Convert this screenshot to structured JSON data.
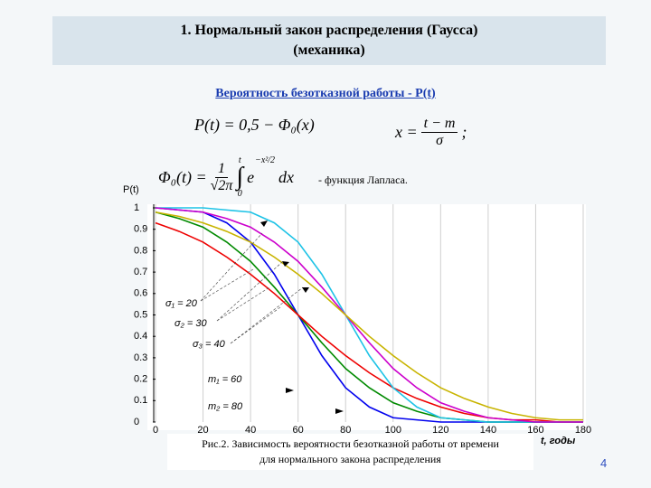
{
  "slide": {
    "title": [
      "1. Нормальный закон распределения (Гаусса)",
      "(механика)"
    ],
    "subtitle": "Вероятность безотказной работы  - P(t)",
    "formula_p": "P(t) = 0,5 − Φ₀(x)",
    "formula_x": {
      "lhs": "x =",
      "num": "t − m",
      "den": "σ",
      "end": ";"
    },
    "formula_laplace": {
      "lhs": "Φ₀(t) =",
      "num": "1",
      "den": "√2π",
      "integral": "∫",
      "upper": "t",
      "lower": "0",
      "base": "e",
      "exponent": "−x²/2",
      "tail": "dx"
    },
    "laplace_note": "- функция Лапласа.",
    "caption": [
      "Рис.2. Зависимость вероятности безотказной работы от времени",
      "для нормального закона распределения"
    ],
    "page_number": "4"
  },
  "chart_data": {
    "type": "line",
    "y_label": "P(t)",
    "x_label": "t, годы",
    "x": [
      0,
      10,
      20,
      30,
      40,
      50,
      60,
      70,
      80,
      90,
      100,
      110,
      120,
      130,
      140,
      150,
      160,
      170,
      180
    ],
    "series": [
      {
        "color": "#0000ee",
        "values": [
          1.0,
          0.99,
          0.98,
          0.93,
          0.84,
          0.69,
          0.5,
          0.31,
          0.16,
          0.07,
          0.02,
          0.01,
          0.0,
          0.0,
          0.0,
          0.0,
          0.0,
          0.0,
          0.0
        ]
      },
      {
        "color": "#008a00",
        "values": [
          0.98,
          0.95,
          0.91,
          0.84,
          0.75,
          0.63,
          0.5,
          0.37,
          0.25,
          0.16,
          0.09,
          0.05,
          0.02,
          0.01,
          0.0,
          0.0,
          0.0,
          0.0,
          0.0
        ]
      },
      {
        "color": "#ee0000",
        "values": [
          0.93,
          0.89,
          0.84,
          0.77,
          0.69,
          0.6,
          0.5,
          0.4,
          0.31,
          0.23,
          0.16,
          0.11,
          0.07,
          0.04,
          0.02,
          0.01,
          0.01,
          0.0,
          0.0
        ]
      },
      {
        "color": "#1ec3e6",
        "values": [
          1.0,
          1.0,
          1.0,
          0.99,
          0.98,
          0.93,
          0.84,
          0.69,
          0.5,
          0.31,
          0.16,
          0.07,
          0.02,
          0.01,
          0.0,
          0.0,
          0.0,
          0.0,
          0.0
        ]
      },
      {
        "color": "#cc00cc",
        "values": [
          1.0,
          0.99,
          0.98,
          0.95,
          0.91,
          0.84,
          0.75,
          0.63,
          0.5,
          0.37,
          0.25,
          0.16,
          0.09,
          0.05,
          0.02,
          0.01,
          0.0,
          0.0,
          0.0
        ]
      },
      {
        "color": "#c8b400",
        "values": [
          0.98,
          0.96,
          0.93,
          0.89,
          0.84,
          0.77,
          0.69,
          0.6,
          0.5,
          0.4,
          0.31,
          0.23,
          0.16,
          0.11,
          0.07,
          0.04,
          0.02,
          0.01,
          0.01
        ]
      }
    ],
    "annotations": [
      "σ₁ = 20",
      "σ₂ = 30",
      "σ₃ = 40",
      "m₁ = 60",
      "m₂ = 80"
    ],
    "xlim": [
      0,
      180
    ],
    "xticks": [
      0,
      20,
      40,
      60,
      80,
      100,
      120,
      140,
      160,
      180
    ],
    "ylim": [
      0,
      1
    ],
    "yticks": [
      0,
      0.1,
      0.2,
      0.3,
      0.4,
      0.5,
      0.6,
      0.7,
      0.8,
      0.9,
      1
    ],
    "grid": true
  }
}
